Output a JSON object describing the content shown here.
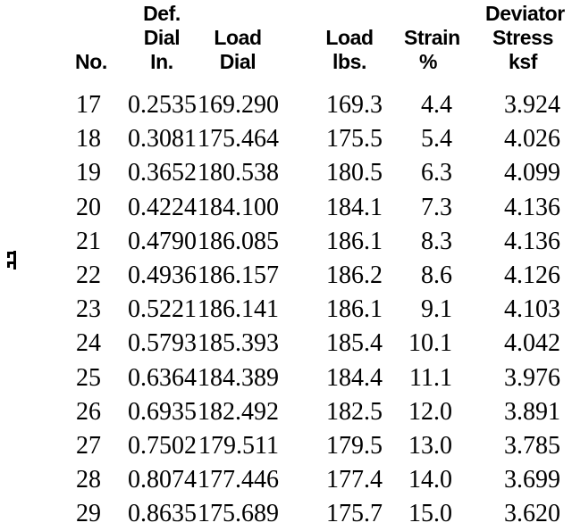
{
  "page": {
    "background_color": "#ffffff",
    "text_color": "#000000"
  },
  "margin_mark": {
    "description": "small black scan artifact glyph in left margin"
  },
  "table": {
    "columns": [
      {
        "key": "no",
        "header_lines": [
          "No."
        ]
      },
      {
        "key": "def-dial-in",
        "header_lines": [
          "Def.",
          "Dial",
          "In."
        ]
      },
      {
        "key": "load-dial",
        "header_lines": [
          "Load",
          "Dial"
        ]
      },
      {
        "key": "load-lbs",
        "header_lines": [
          "Load",
          "lbs."
        ]
      },
      {
        "key": "strain-pct",
        "header_lines": [
          "Strain",
          "%"
        ]
      },
      {
        "key": "deviator-stress-ksf",
        "header_lines": [
          "Deviator",
          "Stress",
          "ksf"
        ]
      }
    ],
    "rows": [
      [
        "17",
        "0.2535",
        "169.290",
        "169.3",
        "4.4",
        "3.924"
      ],
      [
        "18",
        "0.3081",
        "175.464",
        "175.5",
        "5.4",
        "4.026"
      ],
      [
        "19",
        "0.3652",
        "180.538",
        "180.5",
        "6.3",
        "4.099"
      ],
      [
        "20",
        "0.4224",
        "184.100",
        "184.1",
        "7.3",
        "4.136"
      ],
      [
        "21",
        "0.4790",
        "186.085",
        "186.1",
        "8.3",
        "4.136"
      ],
      [
        "22",
        "0.4936",
        "186.157",
        "186.2",
        "8.6",
        "4.126"
      ],
      [
        "23",
        "0.5221",
        "186.141",
        "186.1",
        "9.1",
        "4.103"
      ],
      [
        "24",
        "0.5793",
        "185.393",
        "185.4",
        "10.1",
        "4.042"
      ],
      [
        "25",
        "0.6364",
        "184.389",
        "184.4",
        "11.1",
        "3.976"
      ],
      [
        "26",
        "0.6935",
        "182.492",
        "182.5",
        "12.0",
        "3.891"
      ],
      [
        "27",
        "0.7502",
        "179.511",
        "179.5",
        "13.0",
        "3.785"
      ],
      [
        "28",
        "0.8074",
        "177.446",
        "177.4",
        "14.0",
        "3.699"
      ],
      [
        "29",
        "0.8635",
        "175.689",
        "175.7",
        "15.0",
        "3.620"
      ]
    ]
  }
}
